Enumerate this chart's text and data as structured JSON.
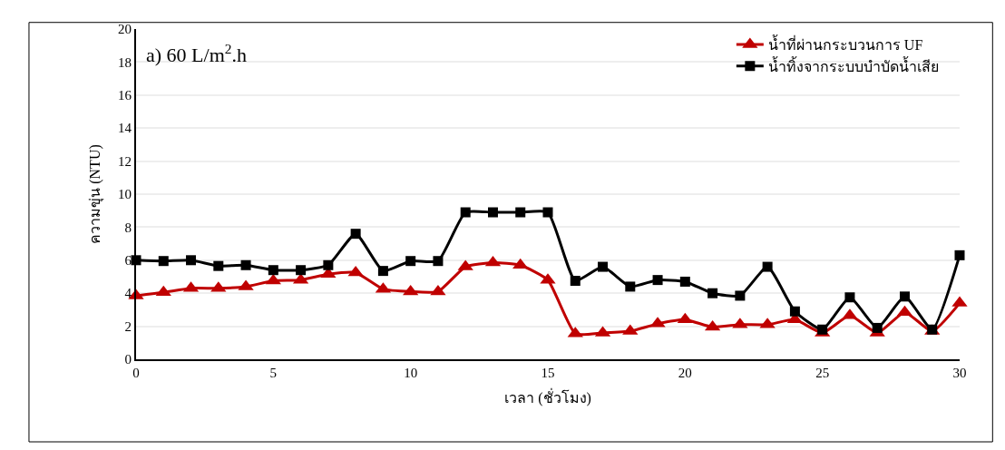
{
  "chart_data": {
    "type": "line",
    "xlabel": "เวลา (ชั่วโมง)",
    "ylabel": "ความขุ่น (NTU)",
    "annotations": [
      "a) 60 L/m$^{2}$.h"
    ],
    "x": [
      0,
      1,
      2,
      3,
      4,
      5,
      6,
      7,
      8,
      9,
      10,
      11,
      12,
      13,
      14,
      15,
      16,
      17,
      18,
      19,
      20,
      21,
      22,
      23,
      24,
      25,
      26,
      27,
      28,
      29,
      30
    ],
    "series": [
      {
        "name": "น้ำที่ผ่านกระบวนการ UF",
        "color": "#c00000",
        "marker": "triangle",
        "values": [
          3.85,
          4.05,
          4.3,
          4.3,
          4.4,
          4.75,
          4.8,
          5.15,
          5.25,
          4.25,
          4.1,
          4.1,
          5.6,
          5.85,
          5.7,
          4.8,
          1.55,
          1.6,
          1.7,
          2.15,
          2.4,
          1.95,
          2.1,
          2.1,
          2.4,
          1.6,
          2.65,
          1.6,
          2.85,
          1.7,
          3.4
        ]
      },
      {
        "name": "น้ำทิ้งจากระบบบำบัดน้ำเสีย",
        "color": "#000000",
        "marker": "square",
        "values": [
          6.0,
          5.95,
          6.0,
          5.65,
          5.7,
          5.4,
          5.4,
          5.7,
          7.6,
          5.35,
          5.95,
          5.95,
          8.9,
          8.9,
          8.9,
          8.9,
          4.75,
          5.6,
          4.4,
          4.8,
          4.7,
          4.0,
          3.85,
          5.6,
          2.9,
          1.8,
          3.75,
          1.9,
          3.8,
          1.8,
          6.3
        ]
      }
    ],
    "xlim": [
      0,
      30
    ],
    "xticks": [
      0,
      5,
      10,
      15,
      20,
      25,
      30
    ],
    "ylim": [
      0,
      20
    ],
    "yticks": [
      0,
      2,
      4,
      6,
      8,
      10,
      12,
      14,
      16,
      18,
      20
    ],
    "grid": "y",
    "legend": "top right",
    "line_style": "solid"
  }
}
